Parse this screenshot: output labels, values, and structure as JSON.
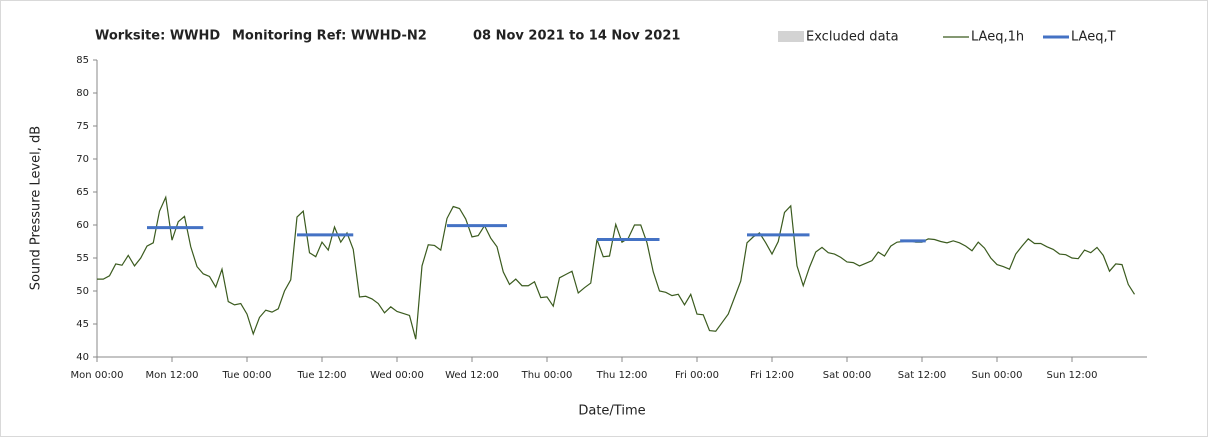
{
  "chart_data": {
    "type": "line",
    "title_parts": [
      "Worksite: WWHD",
      "Monitoring Ref: WWHD-N2",
      "08 Nov 2021 to 14 Nov 2021"
    ],
    "x_label": "Date/Time",
    "y_label": "Sound Pressure Level, dB",
    "excluded": {
      "name": "Excluded data",
      "color": "#d3d3d3"
    },
    "xlim": [
      0,
      168
    ],
    "xticks": [
      {
        "value": 0,
        "label": "Mon 00:00"
      },
      {
        "value": 12,
        "label": "Mon 12:00"
      },
      {
        "value": 24,
        "label": "Tue 00:00"
      },
      {
        "value": 36,
        "label": "Tue 12:00"
      },
      {
        "value": 48,
        "label": "Wed 00:00"
      },
      {
        "value": 60,
        "label": "Wed 12:00"
      },
      {
        "value": 72,
        "label": "Thu 00:00"
      },
      {
        "value": 84,
        "label": "Thu 12:00"
      },
      {
        "value": 96,
        "label": "Fri 00:00"
      },
      {
        "value": 108,
        "label": "Fri 12:00"
      },
      {
        "value": 120,
        "label": "Sat 00:00"
      },
      {
        "value": 132,
        "label": "Sat 12:00"
      },
      {
        "value": 144,
        "label": "Sun 00:00"
      },
      {
        "value": 156,
        "label": "Sun 12:00"
      }
    ],
    "ylim": [
      40,
      85
    ],
    "yticks": [
      40,
      45,
      50,
      55,
      60,
      65,
      70,
      75,
      80,
      85
    ],
    "series": [
      {
        "name": "LAeq,1h",
        "color": "#3b5b1f",
        "width": 1.2,
        "x": [
          0,
          1,
          2,
          3,
          4,
          5,
          6,
          7,
          8,
          9,
          10,
          11,
          12,
          13,
          14,
          15,
          16,
          17,
          18,
          19,
          20,
          21,
          22,
          23,
          24,
          25,
          26,
          27,
          28,
          29,
          30,
          31,
          32,
          33,
          34,
          35,
          36,
          37,
          38,
          39,
          40,
          41,
          42,
          43,
          44,
          45,
          46,
          47,
          48,
          49,
          50,
          51,
          52,
          53,
          54,
          55,
          56,
          57,
          58,
          59,
          60,
          61,
          62,
          63,
          64,
          65,
          66,
          67,
          68,
          69,
          70,
          71,
          72,
          73,
          74,
          75,
          76,
          77,
          78,
          79,
          80,
          81,
          82,
          83,
          84,
          85,
          86,
          87,
          88,
          89,
          90,
          91,
          92,
          93,
          94,
          95,
          96,
          97,
          98,
          99,
          100,
          101,
          102,
          103,
          104,
          105,
          106,
          107,
          108,
          109,
          110,
          111,
          112,
          113,
          114,
          115,
          116,
          117,
          118,
          119,
          120,
          121,
          122,
          123,
          124,
          125,
          126,
          127,
          128,
          129,
          130,
          131,
          132,
          133,
          134,
          135,
          136,
          137,
          138,
          139,
          140,
          141,
          142,
          143,
          144,
          145,
          146,
          147,
          148,
          149,
          150,
          151,
          152,
          153,
          154,
          155,
          156,
          157,
          158,
          159,
          160,
          161,
          162,
          163,
          164,
          165,
          166
        ],
        "values": [
          51.8,
          51.8,
          52.3,
          54.1,
          53.9,
          55.4,
          53.8,
          55.0,
          56.8,
          57.3,
          62.1,
          64.2,
          57.7,
          60.5,
          61.3,
          56.7,
          53.7,
          52.6,
          52.2,
          50.6,
          53.3,
          48.4,
          47.9,
          48.1,
          46.5,
          43.5,
          46.0,
          47.1,
          46.8,
          47.3,
          50.0,
          51.7,
          61.2,
          62.1,
          55.8,
          55.2,
          57.4,
          56.2,
          59.7,
          57.4,
          58.8,
          56.3,
          49.1,
          49.2,
          48.8,
          48.1,
          46.7,
          47.6,
          46.9,
          46.6,
          46.3,
          42.7,
          53.8,
          57.0,
          56.9,
          56.2,
          61.0,
          62.8,
          62.5,
          60.9,
          58.2,
          58.4,
          59.9,
          58.0,
          56.7,
          52.9,
          51.0,
          51.8,
          50.8,
          50.8,
          51.4,
          49.0,
          49.1,
          47.7,
          52.0,
          52.5,
          53.0,
          49.7,
          50.5,
          51.2,
          57.8,
          55.2,
          55.3,
          60.1,
          57.4,
          58.0,
          60.0,
          60.0,
          57.3,
          52.9,
          50.0,
          49.8,
          49.3,
          49.5,
          47.9,
          49.5,
          46.5,
          46.4,
          44.0,
          43.9,
          45.2,
          46.5,
          49.0,
          51.5,
          57.3,
          58.2,
          58.8,
          57.3,
          55.6,
          57.5,
          61.9,
          62.9,
          53.8,
          50.8,
          53.6,
          55.9,
          56.6,
          55.8,
          55.6,
          55.1,
          54.4,
          54.3,
          53.8,
          54.2,
          54.6,
          55.9,
          55.3,
          56.8,
          57.4,
          57.5,
          57.6,
          57.4,
          57.4,
          57.9,
          57.8,
          57.5,
          57.3,
          57.6,
          57.3,
          56.8,
          56.1,
          57.4,
          56.5,
          55.0,
          54.0,
          53.7,
          53.3,
          55.6,
          56.8,
          57.9,
          57.2,
          57.2,
          56.7,
          56.3,
          55.6,
          55.5,
          55.0,
          54.9,
          56.2,
          55.8,
          56.6,
          55.4,
          53.0,
          54.1,
          54.0,
          51.0,
          49.5
        ]
      },
      {
        "name": "LAeq,T",
        "color": "#4472c4",
        "width": 3,
        "x": [
          8,
          17,
          null,
          32,
          41,
          null,
          56,
          65.6,
          null,
          80,
          90,
          null,
          104,
          114,
          null,
          128.5,
          132.6
        ],
        "values": [
          59.6,
          59.6,
          null,
          58.5,
          58.5,
          null,
          59.9,
          59.9,
          null,
          57.8,
          57.8,
          null,
          58.5,
          58.5,
          null,
          57.6,
          57.6
        ]
      }
    ]
  }
}
